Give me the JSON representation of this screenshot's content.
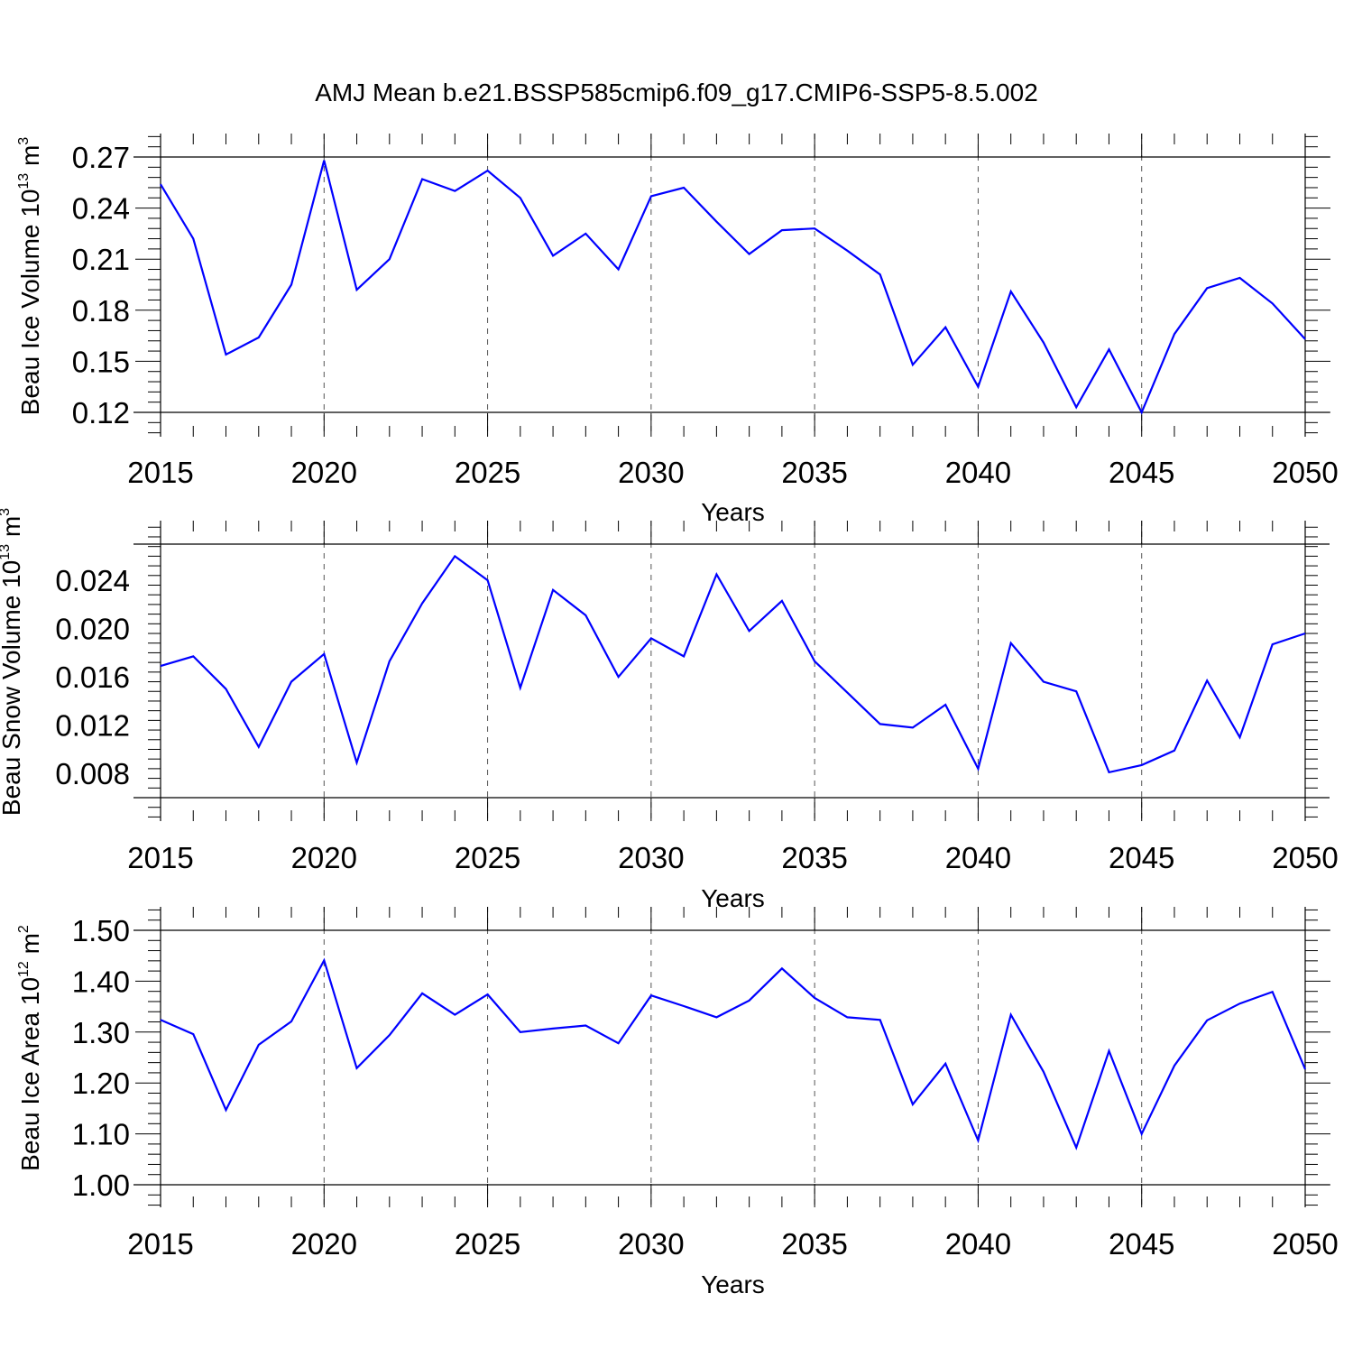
{
  "title": "AMJ Mean b.e21.BSSP585cmip6.f09_g17.CMIP6-SSP5-8.5.002",
  "colors": {
    "line": "#0000ff",
    "axis": "#000000",
    "grid": "#555555"
  },
  "chart_data": [
    {
      "type": "line",
      "ylabel": {
        "text": "Beau Ice Volume 10",
        "exp": "13",
        "unit": " m",
        "unit_exp": "3"
      },
      "xlabel": "Years",
      "xlim": [
        2015,
        2050
      ],
      "ylim": [
        0.12,
        0.27
      ],
      "yticks": [
        "0.12",
        "0.15",
        "0.18",
        "0.21",
        "0.24",
        "0.27"
      ],
      "xticks": [
        "2015",
        "2020",
        "2025",
        "2030",
        "2035",
        "2040",
        "2045",
        "2050"
      ],
      "grid": "vertical dashed at major x ticks",
      "x": [
        2015,
        2016,
        2017,
        2018,
        2019,
        2020,
        2021,
        2022,
        2023,
        2024,
        2025,
        2026,
        2027,
        2028,
        2029,
        2030,
        2031,
        2032,
        2033,
        2034,
        2035,
        2036,
        2037,
        2038,
        2039,
        2040,
        2041,
        2042,
        2043,
        2044,
        2045,
        2046,
        2047,
        2048,
        2049,
        2050
      ],
      "y": [
        0.254,
        0.222,
        0.154,
        0.164,
        0.195,
        0.268,
        0.192,
        0.21,
        0.257,
        0.25,
        0.262,
        0.246,
        0.212,
        0.225,
        0.204,
        0.247,
        0.252,
        0.232,
        0.213,
        0.227,
        0.228,
        0.215,
        0.201,
        0.148,
        0.17,
        0.135,
        0.191,
        0.161,
        0.123,
        0.157,
        0.12,
        0.166,
        0.193,
        0.199,
        0.184,
        0.163
      ]
    },
    {
      "type": "line",
      "ylabel": {
        "text": "Beau Snow Volume 10",
        "exp": "13",
        "unit": " m",
        "unit_exp": "3"
      },
      "xlabel": "Years",
      "xlim": [
        2015,
        2050
      ],
      "ylim": [
        0.006,
        0.027
      ],
      "yticks": [
        "0.008",
        "0.012",
        "0.016",
        "0.020",
        "0.024"
      ],
      "xticks": [
        "2015",
        "2020",
        "2025",
        "2030",
        "2035",
        "2040",
        "2045",
        "2050"
      ],
      "grid": "vertical dashed at major x ticks",
      "x": [
        2015,
        2016,
        2017,
        2018,
        2019,
        2020,
        2021,
        2022,
        2023,
        2024,
        2025,
        2026,
        2027,
        2028,
        2029,
        2030,
        2031,
        2032,
        2033,
        2034,
        2035,
        2036,
        2037,
        2038,
        2039,
        2040,
        2041,
        2042,
        2043,
        2044,
        2045,
        2046,
        2047,
        2048,
        2049,
        2050
      ],
      "y": [
        0.0169,
        0.0177,
        0.015,
        0.0102,
        0.0156,
        0.0179,
        0.0089,
        0.0173,
        0.0221,
        0.026,
        0.024,
        0.0151,
        0.0232,
        0.0211,
        0.016,
        0.0192,
        0.0177,
        0.0245,
        0.0198,
        0.0223,
        0.0173,
        0.0147,
        0.0121,
        0.0118,
        0.0137,
        0.0084,
        0.0188,
        0.0156,
        0.0148,
        0.0081,
        0.0087,
        0.0099,
        0.0157,
        0.011,
        0.0187,
        0.0196
      ]
    },
    {
      "type": "line",
      "ylabel": {
        "text": "Beau Ice Area 10",
        "exp": "12",
        "unit": " m",
        "unit_exp": "2"
      },
      "xlabel": "Years",
      "xlim": [
        2015,
        2050
      ],
      "ylim": [
        1.0,
        1.5
      ],
      "yticks": [
        "1.00",
        "1.10",
        "1.20",
        "1.30",
        "1.40",
        "1.50"
      ],
      "xticks": [
        "2015",
        "2020",
        "2025",
        "2030",
        "2035",
        "2040",
        "2045",
        "2050"
      ],
      "grid": "vertical dashed at major x ticks",
      "x": [
        2015,
        2016,
        2017,
        2018,
        2019,
        2020,
        2021,
        2022,
        2023,
        2024,
        2025,
        2026,
        2027,
        2028,
        2029,
        2030,
        2031,
        2032,
        2033,
        2034,
        2035,
        2036,
        2037,
        2038,
        2039,
        2040,
        2041,
        2042,
        2043,
        2044,
        2045,
        2046,
        2047,
        2048,
        2049,
        2050
      ],
      "y": [
        1.324,
        1.296,
        1.147,
        1.275,
        1.321,
        1.441,
        1.229,
        1.294,
        1.376,
        1.334,
        1.374,
        1.3,
        1.307,
        1.313,
        1.278,
        1.372,
        1.351,
        1.329,
        1.362,
        1.425,
        1.367,
        1.329,
        1.324,
        1.158,
        1.238,
        1.087,
        1.334,
        1.222,
        1.073,
        1.263,
        1.1,
        1.234,
        1.323,
        1.356,
        1.379,
        1.227
      ]
    }
  ]
}
